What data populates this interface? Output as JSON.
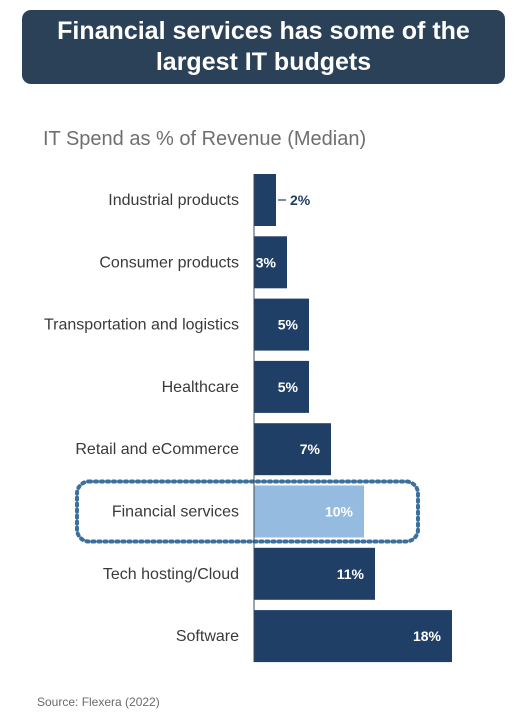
{
  "banner": {
    "title": "Financial services has some of the largest IT budgets"
  },
  "source": "Source: Flexera (2022)",
  "colors": {
    "bar": "#1f3f66",
    "highlight_bar": "#95bbe0",
    "highlight_box": "#3b6f9e",
    "label_text": "#3a3a3a",
    "value_text_inside": "#ffffff",
    "value_text_outside": "#1f3f66",
    "banner_bg": "#2b4157"
  },
  "chart_data": {
    "type": "bar",
    "orientation": "horizontal",
    "title": "IT Spend as % of Revenue (Median)",
    "categories": [
      "Industrial products",
      "Consumer products",
      "Transportation and logistics",
      "Healthcare",
      "Retail and eCommerce",
      "Financial services",
      "Tech hosting/Cloud",
      "Software"
    ],
    "values": [
      2,
      3,
      5,
      5,
      7,
      10,
      11,
      18
    ],
    "value_labels": [
      "2%",
      "3%",
      "5%",
      "5%",
      "7%",
      "10%",
      "11%",
      "18%"
    ],
    "unit": "%",
    "xlim": [
      0,
      18
    ],
    "highlight": "Financial services",
    "grid": false,
    "legend": "none"
  }
}
